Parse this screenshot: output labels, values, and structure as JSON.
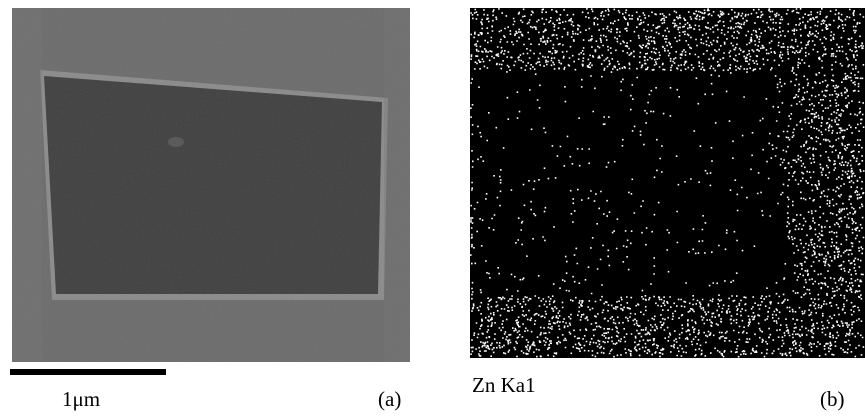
{
  "panels": [
    {
      "scale_label": "1μm",
      "label": "(a)"
    },
    {
      "caption": "Zn Ka1",
      "label": "(b)"
    }
  ]
}
